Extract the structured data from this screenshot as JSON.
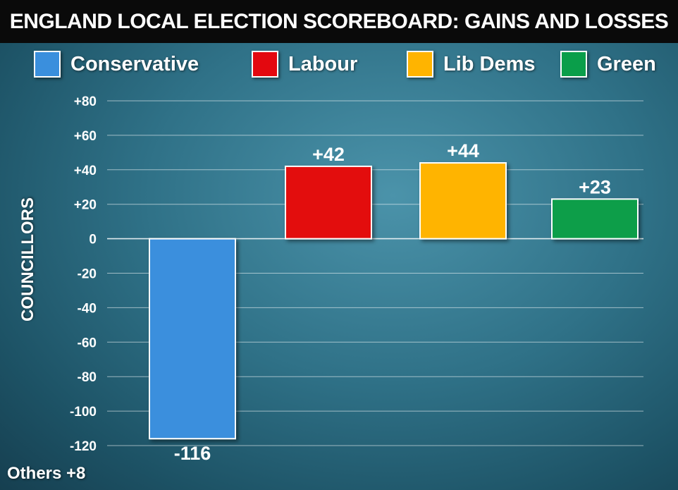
{
  "title": "ENGLAND LOCAL ELECTION SCOREBOARD: GAINS AND LOSSES",
  "footnote": "Others +8",
  "colors": {
    "Conservative": "#3a8fdd",
    "Labour": "#e3080f",
    "Lib Dems": "#ffb400",
    "Green": "#0a9e4a"
  },
  "chart_data": {
    "type": "bar",
    "categories": [
      "Conservative",
      "Labour",
      "Lib Dems",
      "Green"
    ],
    "values": [
      -116,
      42,
      44,
      23
    ],
    "data_labels": [
      "-116",
      "+42",
      "+44",
      "+23"
    ],
    "title": "ENGLAND LOCAL ELECTION SCOREBOARD: GAINS AND LOSSES",
    "xlabel": "",
    "ylabel": "COUNCILLORS",
    "ylim": [
      -120,
      80
    ],
    "yticks": [
      80,
      60,
      40,
      20,
      0,
      -20,
      -40,
      -60,
      -80,
      -100,
      -120
    ],
    "ytick_labels": [
      "+80",
      "+60",
      "+40",
      "+20",
      "0",
      "-20",
      "-40",
      "-60",
      "-80",
      "-100",
      "-120"
    ],
    "grid": true,
    "legend": {
      "position": "top",
      "entries": [
        "Conservative",
        "Labour",
        "Lib Dems",
        "Green"
      ]
    }
  }
}
